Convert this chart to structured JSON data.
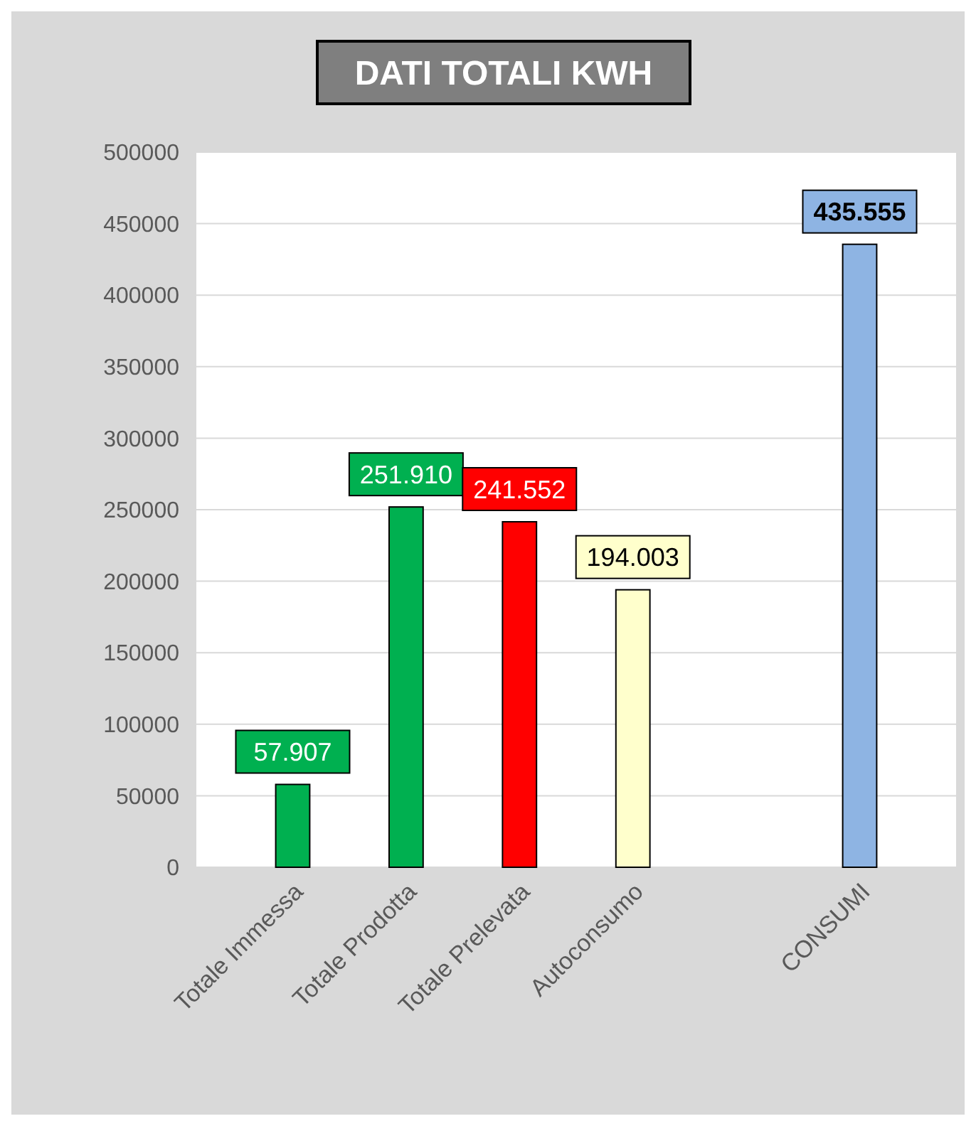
{
  "chart_data": {
    "type": "bar",
    "title": "DATI TOTALI KWH",
    "categories": [
      "Totale Immessa",
      "Totale Prodotta",
      "Totale Prelevata",
      "Autoconsumo",
      null,
      "CONSUMI"
    ],
    "values": [
      57907,
      251910,
      241552,
      194003,
      null,
      435555
    ],
    "colors": [
      "#00b050",
      "#00b050",
      "#ff0000",
      "#ffffcc",
      null,
      "#8eb4e3"
    ],
    "value_labels": [
      "57.907",
      "251.910",
      "241.552",
      "194.003",
      null,
      "435.555"
    ],
    "ylim": [
      0,
      500000
    ],
    "yticks": [
      0,
      50000,
      100000,
      150000,
      200000,
      250000,
      300000,
      350000,
      400000,
      450000,
      500000
    ],
    "grid": "y"
  }
}
